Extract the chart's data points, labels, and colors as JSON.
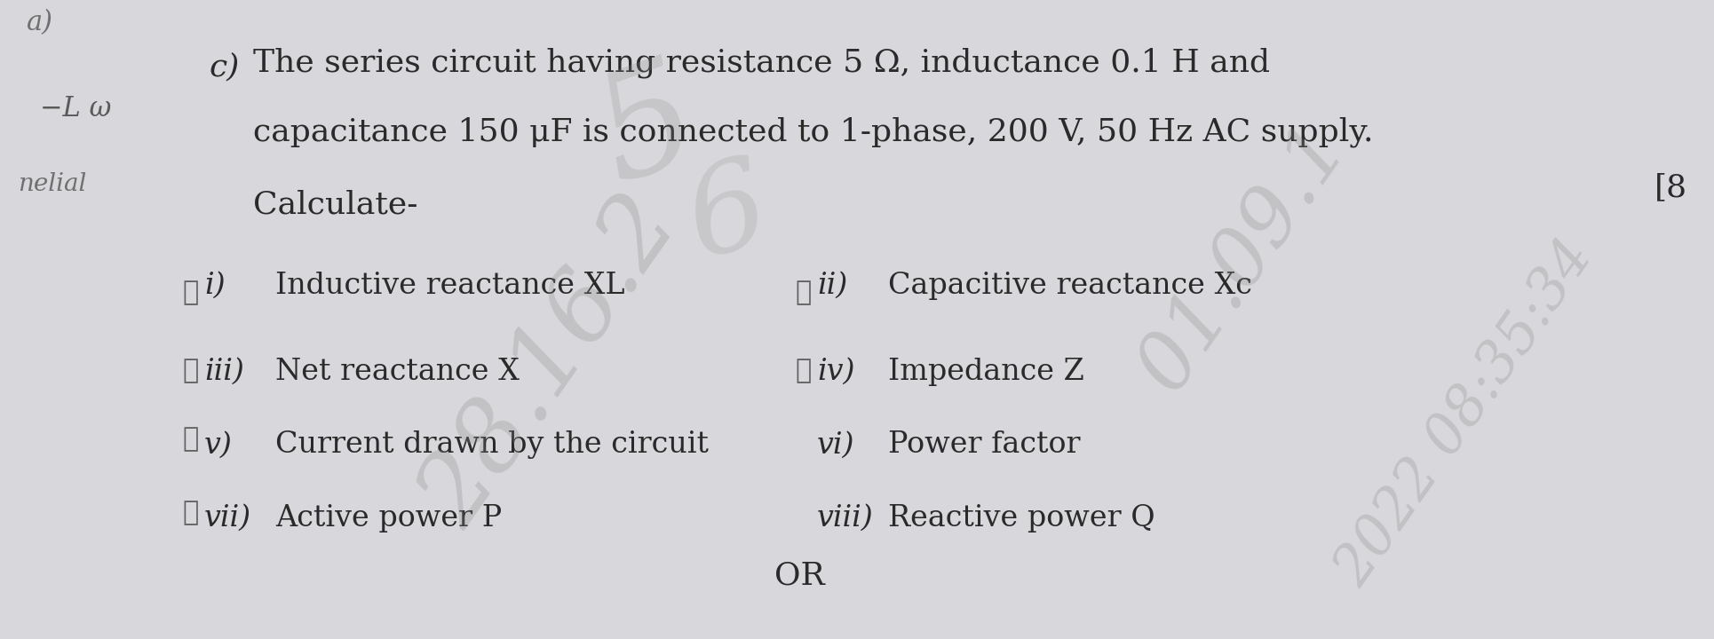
{
  "background_color": "#d8d8dc",
  "line1": "The series circuit having resistance 5 Ω, inductance 0.1 H and",
  "line2": "capacitance 150 μF is connected to 1-phase, 200 V, 50 Hz AC supply.",
  "line3": "Calculate-",
  "label_c": "c)",
  "mark_bracket": "[8",
  "items_left": [
    {
      "label": "i)",
      "text": "Inductive reactance XL"
    },
    {
      "label": "iii)",
      "text": "Net reactance X"
    },
    {
      "label": "v)",
      "text": "Current drawn by the circuit"
    },
    {
      "label": "vii)",
      "text": "Active power P"
    }
  ],
  "items_right": [
    {
      "label": "ii)",
      "text": "Capacitive reactance Xc"
    },
    {
      "label": "iv)",
      "text": "Impedance Z"
    },
    {
      "label": "vi)",
      "text": "Power factor"
    },
    {
      "label": "viii)",
      "text": "Reactive power Q"
    }
  ],
  "or_text": "OR",
  "font_size_main": 26,
  "font_size_items": 24,
  "font_size_small": 20,
  "text_color": "#2a2a2a",
  "handwritten_color": "#444444",
  "watermark_color": "#888888",
  "watermark_alpha": 0.28
}
